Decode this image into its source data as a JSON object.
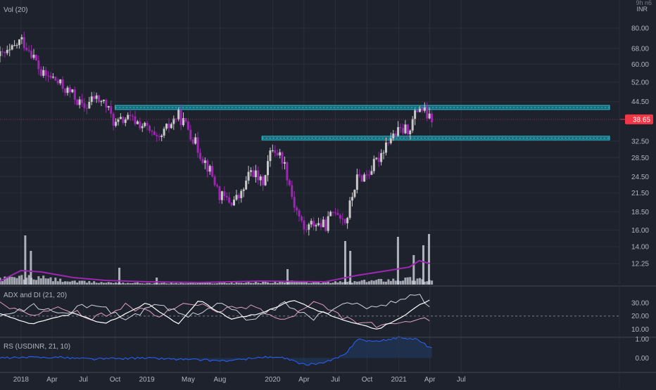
{
  "colors": {
    "background": "#1e222d",
    "grid": "#2a2e39",
    "axis_text": "#b2b5be",
    "up_candle": "#c8c8c8",
    "down_candle": "#9c27b0",
    "volume_bar": "#d1d4dc",
    "volume_ma": "#9c27b0",
    "zone_fill": "#2196a6",
    "zone_line": "#26c6da",
    "price_line": "#8e2d4f",
    "price_tag": "#f23645",
    "adx": "#ffffff",
    "di_plus": "#d1d4dc",
    "di_minus": "#e0a0c0",
    "rs_line": "#2962ff",
    "rs_fill": "#1e3a5f"
  },
  "price_axis": {
    "unit_top": "9h n6",
    "currency": "INR",
    "tick_labels": [
      "80.00",
      "68.00",
      "60.00",
      "52.00",
      "44.50",
      "32.50",
      "28.50",
      "24.50",
      "21.50",
      "18.50",
      "16.00",
      "14.00",
      "12.25"
    ],
    "last_price_label": "38.65"
  },
  "time_axis": {
    "labels": [
      "2018",
      "Apr",
      "Jul",
      "Oct",
      "2019",
      "May",
      "Aug",
      "2020",
      "Apr",
      "Jul",
      "Oct",
      "2021",
      "Apr",
      "Jul"
    ]
  },
  "panels": {
    "main": {
      "legend": "Vol (20)"
    },
    "adx": {
      "legend": "ADX and DI (21, 20)",
      "tick_labels": [
        "30.00",
        "20.00",
        "10.00"
      ],
      "ref_level": 20
    },
    "rs": {
      "legend": "RS (USDINR, 21, 10)",
      "tick_labels": [
        "1.00",
        "0.00"
      ]
    }
  },
  "chart_data": {
    "type": "candlestick",
    "title": "",
    "y_scale": "log",
    "price_ticks": [
      80,
      68,
      60,
      52,
      44.5,
      38.65,
      32.5,
      28.5,
      24.5,
      21.5,
      18.5,
      16,
      14,
      12.25
    ],
    "last_price": 38.65,
    "resistance_zones": [
      {
        "from": "2018-10",
        "to": "2021-08",
        "low": 41.8,
        "high": 43.2
      },
      {
        "from": "2019-12",
        "to": "2021-08",
        "low": 32.8,
        "high": 33.8
      }
    ],
    "close_path": [
      [
        "2017-11",
        64
      ],
      [
        "2017-12",
        66
      ],
      [
        "2018-01",
        73
      ],
      [
        "2018-02",
        66
      ],
      [
        "2018-03",
        55
      ],
      [
        "2018-04",
        54
      ],
      [
        "2018-05",
        50
      ],
      [
        "2018-06",
        47
      ],
      [
        "2018-07",
        42
      ],
      [
        "2018-08",
        46
      ],
      [
        "2018-09",
        44
      ],
      [
        "2018-10",
        37
      ],
      [
        "2018-11",
        39
      ],
      [
        "2018-12",
        38
      ],
      [
        "2019-01",
        36
      ],
      [
        "2019-02",
        32
      ],
      [
        "2019-03",
        36
      ],
      [
        "2019-04",
        40
      ],
      [
        "2019-05",
        36
      ],
      [
        "2019-06",
        30
      ],
      [
        "2019-07",
        26
      ],
      [
        "2019-08",
        21
      ],
      [
        "2019-09",
        20
      ],
      [
        "2019-10",
        21
      ],
      [
        "2019-11",
        26
      ],
      [
        "2019-12",
        23
      ],
      [
        "2020-01",
        31
      ],
      [
        "2020-02",
        28
      ],
      [
        "2020-03",
        20
      ],
      [
        "2020-04",
        16
      ],
      [
        "2020-05",
        17
      ],
      [
        "2020-06",
        16.5
      ],
      [
        "2020-07",
        19
      ],
      [
        "2020-08",
        17
      ],
      [
        "2020-09",
        24
      ],
      [
        "2020-10",
        25
      ],
      [
        "2020-11",
        28
      ],
      [
        "2020-12",
        33
      ],
      [
        "2021-01",
        35
      ],
      [
        "2021-02",
        36
      ],
      [
        "2021-03",
        43
      ],
      [
        "2021-04",
        38.65
      ]
    ],
    "volume": {
      "ma_period": 20,
      "baseline": [
        [
          "2017-11",
          8
        ],
        [
          "2018-01",
          10
        ],
        [
          "2018-03",
          9
        ],
        [
          "2018-06",
          4
        ],
        [
          "2018-09",
          3
        ],
        [
          "2019-01",
          2
        ],
        [
          "2019-06",
          2
        ],
        [
          "2019-12",
          3
        ],
        [
          "2020-03",
          4
        ],
        [
          "2020-06",
          3
        ],
        [
          "2020-09",
          4
        ],
        [
          "2020-12",
          7
        ],
        [
          "2021-02",
          8
        ],
        [
          "2021-04",
          6
        ]
      ],
      "spikes": [
        [
          "2018-01",
          70
        ],
        [
          "2018-01",
          48
        ],
        [
          "2018-10",
          24
        ],
        [
          "2019-01",
          10
        ],
        [
          "2020-02",
          22
        ],
        [
          "2020-07",
          62
        ],
        [
          "2020-08",
          48
        ],
        [
          "2020-12",
          68
        ],
        [
          "2021-02",
          42
        ],
        [
          "2021-03",
          72
        ],
        [
          "2021-03",
          56
        ]
      ],
      "ma": [
        [
          "2017-11",
          5
        ],
        [
          "2018-01",
          20
        ],
        [
          "2018-03",
          18
        ],
        [
          "2018-06",
          10
        ],
        [
          "2018-09",
          6
        ],
        [
          "2019-01",
          4
        ],
        [
          "2019-06",
          3
        ],
        [
          "2019-12",
          5
        ],
        [
          "2020-06",
          4
        ],
        [
          "2020-09",
          13
        ],
        [
          "2020-12",
          20
        ],
        [
          "2021-02",
          25
        ],
        [
          "2021-03",
          34
        ],
        [
          "2021-04",
          30
        ]
      ]
    },
    "adx_di": {
      "period": 21,
      "smoothing": 20,
      "adx": [
        [
          "2017-11",
          22
        ],
        [
          "2018-02",
          14
        ],
        [
          "2018-06",
          22
        ],
        [
          "2018-09",
          14
        ],
        [
          "2019-01",
          30
        ],
        [
          "2019-04",
          14
        ],
        [
          "2019-06",
          32
        ],
        [
          "2019-09",
          18
        ],
        [
          "2019-12",
          22
        ],
        [
          "2020-03",
          32
        ],
        [
          "2020-06",
          22
        ],
        [
          "2020-09",
          14
        ],
        [
          "2020-11",
          10
        ],
        [
          "2021-01",
          18
        ],
        [
          "2021-03",
          28
        ],
        [
          "2021-04",
          32
        ]
      ],
      "di_plus": [
        [
          "2017-11",
          18
        ],
        [
          "2018-02",
          28
        ],
        [
          "2018-05",
          22
        ],
        [
          "2018-08",
          30
        ],
        [
          "2018-11",
          18
        ],
        [
          "2019-02",
          28
        ],
        [
          "2019-05",
          20
        ],
        [
          "2019-08",
          30
        ],
        [
          "2019-11",
          16
        ],
        [
          "2020-02",
          30
        ],
        [
          "2020-05",
          18
        ],
        [
          "2020-08",
          30
        ],
        [
          "2020-10",
          26
        ],
        [
          "2020-12",
          30
        ],
        [
          "2021-03",
          36
        ],
        [
          "2021-04",
          26
        ]
      ],
      "di_minus": [
        [
          "2017-11",
          30
        ],
        [
          "2018-02",
          20
        ],
        [
          "2018-05",
          26
        ],
        [
          "2018-08",
          18
        ],
        [
          "2018-11",
          28
        ],
        [
          "2019-02",
          20
        ],
        [
          "2019-05",
          30
        ],
        [
          "2019-08",
          24
        ],
        [
          "2019-11",
          28
        ],
        [
          "2020-02",
          16
        ],
        [
          "2020-05",
          30
        ],
        [
          "2020-08",
          18
        ],
        [
          "2020-10",
          14
        ],
        [
          "2020-12",
          12
        ],
        [
          "2021-03",
          18
        ],
        [
          "2021-04",
          16
        ]
      ]
    },
    "relative_strength": {
      "benchmark": "USDINR",
      "period": 21,
      "smoothing": 10,
      "series": [
        [
          "2017-11",
          0.0
        ],
        [
          "2018-04",
          0.05
        ],
        [
          "2018-08",
          -0.05
        ],
        [
          "2019-01",
          0.0
        ],
        [
          "2019-06",
          -0.1
        ],
        [
          "2019-09",
          -0.15
        ],
        [
          "2019-12",
          0.05
        ],
        [
          "2020-02",
          0.0
        ],
        [
          "2020-04",
          -0.35
        ],
        [
          "2020-06",
          -0.25
        ],
        [
          "2020-08",
          0.2
        ],
        [
          "2020-09",
          1.0
        ],
        [
          "2020-11",
          0.85
        ],
        [
          "2021-01",
          1.1
        ],
        [
          "2021-03",
          0.95
        ],
        [
          "2021-04",
          0.55
        ]
      ]
    }
  }
}
